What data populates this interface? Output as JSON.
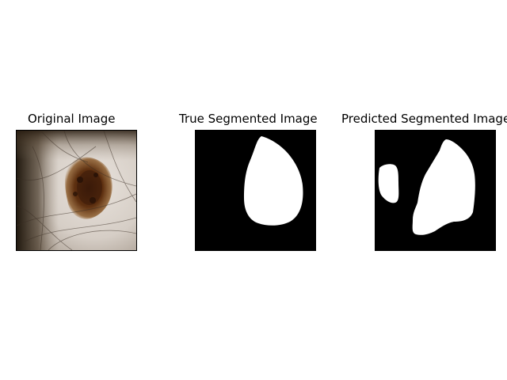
{
  "panels": [
    {
      "title": "Original Image"
    },
    {
      "title": "True Segmented Image"
    },
    {
      "title": "Predicted Segmented Image"
    }
  ],
  "colors": {
    "background": "#ffffff",
    "mask_background": "#000000",
    "mask_foreground": "#ffffff",
    "lesion_dark": "#3a1a0a",
    "lesion_mid": "#7a4418",
    "skin": "#d9d0c8"
  }
}
